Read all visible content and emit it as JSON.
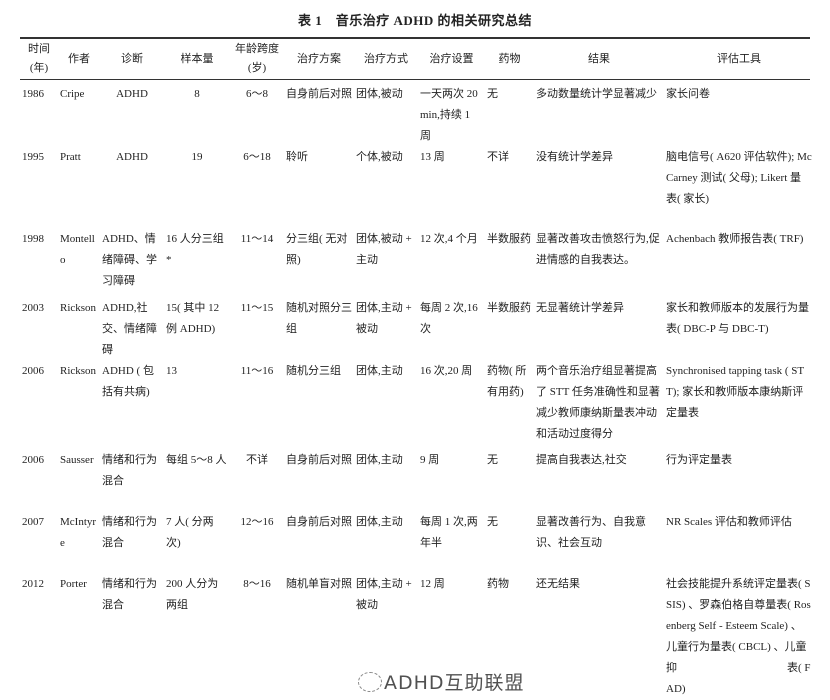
{
  "title": "表 1　音乐治疗 ADHD 的相关研究总结",
  "headers": [
    "时间(年)",
    "作者",
    "诊断",
    "样本量",
    "年龄跨度(岁)",
    "治疗方案",
    "治疗方式",
    "治疗设置",
    "药物",
    "结果",
    "评估工具"
  ],
  "rows": [
    [
      "1986",
      "Cripe",
      "ADHD",
      "8",
      "6～8",
      "自身前后对照",
      "团体,被动",
      "一天两次 20 min,持续 1 周",
      "无",
      "多动数量统计学显著减少",
      "家长问卷"
    ],
    [
      "1995",
      "Pratt",
      "ADHD",
      "19",
      "6～18",
      "聆听",
      "个体,被动",
      "13 周",
      "不详",
      "没有统计学差异",
      "脑电信号( A620 评估软件); McCarney 测试( 父母); Likert 量表( 家长)"
    ],
    [
      "1998",
      "Montello",
      "ADHD、情绪障碍、学习障碍",
      "16 人分三组 *",
      "11～14",
      "分三组( 无对照)",
      "团体,被动 + 主动",
      "12 次,4 个月",
      "半数服药",
      "显著改善攻击愤怒行为,促进情感的自我表达。",
      "Achenbach 教师报告表( TRF)"
    ],
    [
      "2003",
      "Rickson",
      "ADHD,社交、情绪障碍",
      "15( 其中 12 例 ADHD)",
      "11～15",
      "随机对照分三组",
      "团体,主动 + 被动",
      "每周 2 次,16 次",
      "半数服药",
      "无显著统计学差异",
      "家长和教师版本的发展行为量表( DBC-P 与 DBC-T)"
    ],
    [
      "2006",
      "Rickson",
      "ADHD ( 包括有共病)",
      "13",
      "11～16",
      "随机分三组",
      "团体,主动",
      "16 次,20 周",
      "药物( 所有用药)",
      "两个音乐治疗组显著提高了 STT 任务准确性和显著减少教师康纳斯量表冲动和活动过度得分",
      "Synchronised tapping task ( STT); 家长和教师版本康纳斯评定量表"
    ],
    [
      "2006",
      "Sausser",
      "情绪和行为混合",
      "每组 5～8 人",
      "不详",
      "自身前后对照",
      "团体,主动",
      "9 周",
      "无",
      "提高自我表达,社交",
      "行为评定量表"
    ],
    [
      "2007",
      "McIntyre",
      "情绪和行为混合",
      "7 人( 分两次)",
      "12～16",
      "自身前后对照",
      "团体,主动",
      "每周 1 次,两年半",
      "无",
      "显著改善行为、自我意识、社会互动",
      "NR Scales 评估和教师评估"
    ],
    [
      "2012",
      "Porter",
      "情绪和行为混合",
      "200 人分为两组",
      "8～16",
      "随机单盲对照",
      "团体,主动 + 被动",
      "12 周",
      "药物",
      "还无结果",
      "社会技能提升系统评定量表( SSIS) 、罗森伯格自尊量表( Rosenberg Self - Esteem Scale) 、儿童行为量表( CBCL) 、儿童抑　　　　　　　　　　表( FAD)"
    ]
  ],
  "watermark": "ADHD互助联盟"
}
